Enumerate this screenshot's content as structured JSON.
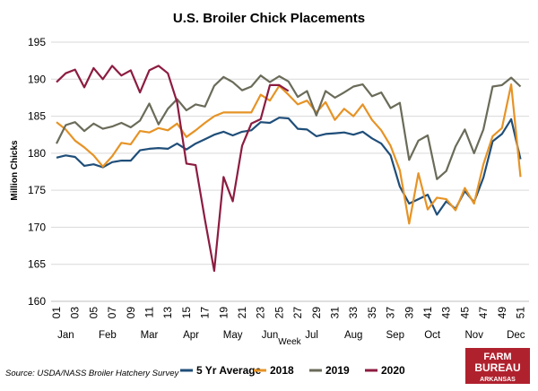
{
  "chart_data": {
    "type": "line",
    "title": "U.S. Broiler Chick Placements",
    "xlabel": "Week",
    "ylabel": "Million Chicks",
    "ylim": [
      160,
      195
    ],
    "yticks": [
      160,
      165,
      170,
      175,
      180,
      185,
      190,
      195
    ],
    "x": [
      1,
      2,
      3,
      4,
      5,
      6,
      7,
      8,
      9,
      10,
      11,
      12,
      13,
      14,
      15,
      16,
      17,
      18,
      19,
      20,
      21,
      22,
      23,
      24,
      25,
      26,
      27,
      28,
      29,
      30,
      31,
      32,
      33,
      34,
      35,
      36,
      37,
      38,
      39,
      40,
      41,
      42,
      43,
      44,
      45,
      46,
      47,
      48,
      49,
      50,
      51,
      52
    ],
    "week_tick_labels": [
      "01",
      "03",
      "05",
      "07",
      "09",
      "11",
      "13",
      "15",
      "17",
      "19",
      "21",
      "23",
      "25",
      "27",
      "29",
      "31",
      "33",
      "35",
      "37",
      "39",
      "41",
      "43",
      "45",
      "47",
      "49",
      "51"
    ],
    "months": [
      "Jan",
      "Feb",
      "Mar",
      "Apr",
      "May",
      "Jun",
      "Jul",
      "Aug",
      "Sep",
      "Oct",
      "Nov",
      "Dec"
    ],
    "grid": "horizontal",
    "legend": "bottom",
    "series": [
      {
        "name": "5 Yr Average",
        "color": "#1f4e79",
        "values": [
          179.4,
          179.7,
          179.5,
          178.3,
          178.5,
          178.1,
          178.8,
          179.0,
          179.0,
          180.4,
          180.6,
          180.7,
          180.6,
          181.3,
          180.5,
          181.3,
          181.9,
          182.5,
          182.9,
          182.4,
          182.9,
          183.1,
          184.2,
          184.1,
          184.8,
          184.7,
          183.3,
          183.2,
          182.3,
          182.6,
          182.7,
          182.8,
          182.5,
          182.9,
          182.0,
          181.3,
          179.7,
          175.5,
          173.2,
          173.8,
          174.4,
          171.7,
          173.5,
          172.5,
          174.9,
          173.4,
          176.7,
          181.6,
          182.6,
          184.6,
          179.2,
          null
        ]
      },
      {
        "name": "2018",
        "color": "#e69325",
        "values": [
          184.2,
          183.2,
          181.7,
          180.8,
          179.7,
          178.2,
          179.6,
          181.4,
          181.2,
          183.0,
          182.8,
          183.4,
          183.1,
          184.0,
          182.2,
          183.1,
          184.1,
          185.0,
          185.5,
          185.5,
          185.5,
          185.5,
          187.9,
          187.1,
          189.1,
          187.9,
          186.6,
          187.1,
          185.5,
          186.9,
          184.5,
          186.0,
          185.0,
          186.6,
          184.5,
          183.1,
          181.0,
          177.7,
          170.5,
          177.3,
          172.4,
          174.0,
          173.8,
          172.3,
          175.3,
          173.2,
          178.5,
          182.3,
          183.4,
          189.3,
          176.8,
          null
        ]
      },
      {
        "name": "2019",
        "color": "#6b6b5a",
        "values": [
          181.3,
          183.8,
          184.2,
          183.0,
          184.0,
          183.3,
          183.6,
          184.1,
          183.5,
          184.4,
          186.7,
          183.9,
          186.0,
          187.3,
          185.8,
          186.6,
          186.3,
          189.1,
          190.3,
          189.6,
          188.5,
          189.0,
          190.5,
          189.6,
          190.4,
          189.7,
          187.6,
          188.4,
          185.1,
          188.4,
          187.5,
          188.2,
          189.0,
          189.3,
          187.7,
          188.2,
          186.1,
          186.8,
          179.1,
          181.7,
          182.4,
          176.5,
          177.6,
          180.9,
          183.2,
          180.0,
          183.2,
          189.0,
          189.2,
          190.2,
          189.0,
          null
        ]
      },
      {
        "name": "2020",
        "color": "#8c1c40",
        "values": [
          189.6,
          190.8,
          191.3,
          188.9,
          191.5,
          190.0,
          191.8,
          190.5,
          191.2,
          188.2,
          191.2,
          191.8,
          190.8,
          186.9,
          178.6,
          178.4,
          171.0,
          164.1,
          176.8,
          173.5,
          181.0,
          184.0,
          184.6,
          189.2,
          189.2,
          188.4,
          null,
          null,
          null,
          null,
          null,
          null,
          null,
          null,
          null,
          null,
          null,
          null,
          null,
          null,
          null,
          null,
          null,
          null,
          null,
          null,
          null,
          null,
          null,
          null,
          null,
          null
        ]
      }
    ]
  },
  "source": "Source: USDA/NASS Broiler Hatchery Survey",
  "logo": {
    "line1": "FARM",
    "line2": "BUREAU",
    "line3": "ARKANSAS",
    "color": "#b0212e"
  }
}
